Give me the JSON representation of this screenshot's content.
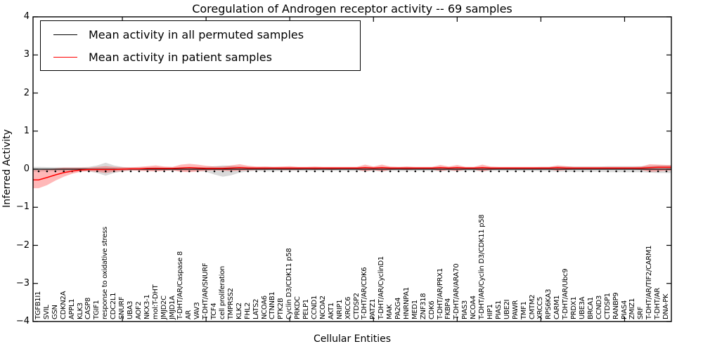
{
  "figure": {
    "title": "Coregulation of Androgen receptor activity -- 69 samples",
    "xlabel": "Cellular Entities",
    "ylabel": "Inferred Activity"
  },
  "legend": {
    "entries": [
      {
        "label": "Mean activity in all permuted samples",
        "color": "#000000"
      },
      {
        "label": "Mean activity in patient samples",
        "color": "#ff0000"
      }
    ]
  },
  "chart_data": {
    "type": "line",
    "title": "Coregulation of Androgen receptor activity -- 69 samples",
    "xlabel": "Cellular Entities",
    "ylabel": "Inferred Activity",
    "ylim": [
      -4,
      4
    ],
    "yticks": [
      4,
      3,
      2,
      1,
      0,
      -1,
      -2,
      -3,
      -4
    ],
    "ytick_labels": [
      "4",
      "3",
      "2",
      "1",
      "0",
      "−1",
      "−2",
      "−3",
      "−4"
    ],
    "grid": false,
    "legend_position": "upper left",
    "categories": [
      "TGFB1I1",
      "SVIL",
      "GSN",
      "CDKN2A",
      "APPL1",
      "KLK3",
      "CASP8",
      "TGIF1",
      "response to oxidative stress",
      "CDC2L1",
      "SNURF",
      "UBA3",
      "AOF2",
      "NKX3-1",
      "mol:T-DHT",
      "JMJD2C",
      "JMJD1A",
      "T-DHT/AR/Caspase 8",
      "AR",
      "VAV3",
      "T-DHT/AR/SNURF",
      "TCF4",
      "cell proliferation",
      "TMPRSS2",
      "KLK2",
      "FHL2",
      "LATS2",
      "NCOA6",
      "CTNNB1",
      "PTK2B",
      "Cyclin D3/CDK11 p58",
      "PRKDC",
      "PELP1",
      "CCND1",
      "NCOA2",
      "AKT1",
      "NRIP1",
      "XRCC6",
      "CTDSP2",
      "T-DHT/AR/CDK6",
      "PATZ1",
      "T-DHT/AR/CyclinD1",
      "MAK",
      "PA2G4",
      "HNRNPA1",
      "MED1",
      "ZNF318",
      "CDK6",
      "T-DHT/AR/PRX1",
      "FKBP4",
      "T-DHT/AR/ARA70",
      "PIAS3",
      "NCOA4",
      "T-DHT/AR/Cyclin D3/CDK11 p58",
      "HIP1",
      "PIAS1",
      "UBE2I",
      "PAWR",
      "TMF1",
      "CMTM2",
      "XRCC5",
      "RPS6KA3",
      "CARM1",
      "T-DHT/AR/Ubc9",
      "PRDX1",
      "UBE3A",
      "BRCA1",
      "CCND3",
      "CTDSP1",
      "RANBP9",
      "PIAS4",
      "ZMIZ1",
      "SRF",
      "T-DHT/AR/TIF2/CARM1",
      "T-DHT/AR",
      "DNA-PK"
    ],
    "series": [
      {
        "name": "Mean activity in all permuted samples",
        "color": "#000000",
        "style": "solid line at constant value with dot markers per entity",
        "constant_value": 0.0,
        "marker_offset": -0.055
      },
      {
        "name": "Mean activity in patient samples",
        "color": "#ff0000",
        "values": [
          -0.28,
          -0.22,
          -0.15,
          -0.09,
          -0.05,
          -0.02,
          -0.01,
          -0.01,
          -0.01,
          -0.01,
          0.0,
          0.01,
          0.01,
          0.02,
          0.02,
          0.02,
          0.02,
          0.03,
          0.04,
          0.03,
          0.02,
          0.02,
          0.02,
          0.03,
          0.04,
          0.03,
          0.03,
          0.03,
          0.03,
          0.03,
          0.03,
          0.03,
          0.03,
          0.03,
          0.03,
          0.03,
          0.03,
          0.03,
          0.03,
          0.04,
          0.03,
          0.04,
          0.03,
          0.03,
          0.03,
          0.03,
          0.03,
          0.03,
          0.04,
          0.03,
          0.04,
          0.03,
          0.03,
          0.04,
          0.03,
          0.03,
          0.03,
          0.03,
          0.03,
          0.03,
          0.03,
          0.03,
          0.04,
          0.03,
          0.03,
          0.03,
          0.03,
          0.03,
          0.03,
          0.03,
          0.03,
          0.03,
          0.03,
          0.04,
          0.05,
          0.05
        ]
      }
    ],
    "bands": [
      {
        "name": "permuted samples spread",
        "color": "rgba(130,130,130,0.30)",
        "upper": [
          0.06,
          0.055,
          0.05,
          0.05,
          0.05,
          0.05,
          0.06,
          0.1,
          0.17,
          0.1,
          0.06,
          0.045,
          0.045,
          0.045,
          0.05,
          0.045,
          0.045,
          0.05,
          0.055,
          0.05,
          0.06,
          0.08,
          0.1,
          0.09,
          0.07,
          0.06,
          0.05,
          0.06,
          0.06,
          0.05,
          0.05,
          0.05,
          0.05,
          0.05,
          0.05,
          0.05,
          0.05,
          0.05,
          0.05,
          0.06,
          0.05,
          0.06,
          0.05,
          0.05,
          0.06,
          0.05,
          0.05,
          0.05,
          0.06,
          0.05,
          0.06,
          0.05,
          0.05,
          0.06,
          0.05,
          0.05,
          0.05,
          0.05,
          0.05,
          0.05,
          0.06,
          0.06,
          0.07,
          0.07,
          0.07,
          0.07,
          0.07,
          0.07,
          0.08,
          0.08,
          0.08,
          0.08,
          0.08,
          0.09,
          0.1,
          0.1
        ],
        "lower": [
          -0.06,
          -0.055,
          -0.05,
          -0.05,
          -0.05,
          -0.05,
          -0.06,
          -0.1,
          -0.17,
          -0.1,
          -0.06,
          -0.045,
          -0.045,
          -0.045,
          -0.05,
          -0.045,
          -0.045,
          -0.05,
          -0.055,
          -0.05,
          -0.07,
          -0.14,
          -0.2,
          -0.16,
          -0.09,
          -0.06,
          -0.05,
          -0.06,
          -0.06,
          -0.05,
          -0.05,
          -0.05,
          -0.05,
          -0.05,
          -0.05,
          -0.05,
          -0.05,
          -0.05,
          -0.05,
          -0.06,
          -0.05,
          -0.06,
          -0.05,
          -0.05,
          -0.06,
          -0.05,
          -0.05,
          -0.05,
          -0.06,
          -0.05,
          -0.06,
          -0.05,
          -0.05,
          -0.06,
          -0.05,
          -0.05,
          -0.05,
          -0.05,
          -0.05,
          -0.05,
          -0.06,
          -0.06,
          -0.07,
          -0.07,
          -0.07,
          -0.07,
          -0.07,
          -0.07,
          -0.08,
          -0.08,
          -0.08,
          -0.08,
          -0.08,
          -0.09,
          -0.1,
          -0.1
        ]
      },
      {
        "name": "patient samples spread",
        "color": "rgba(255,0,0,0.28)",
        "upper": [
          -0.02,
          0.0,
          0.02,
          0.04,
          0.04,
          0.04,
          0.04,
          0.06,
          0.08,
          0.06,
          0.05,
          0.05,
          0.06,
          0.08,
          0.1,
          0.07,
          0.06,
          0.12,
          0.14,
          0.12,
          0.09,
          0.07,
          0.07,
          0.1,
          0.13,
          0.09,
          0.07,
          0.07,
          0.06,
          0.07,
          0.08,
          0.06,
          0.06,
          0.07,
          0.06,
          0.06,
          0.06,
          0.06,
          0.06,
          0.12,
          0.07,
          0.12,
          0.07,
          0.06,
          0.07,
          0.06,
          0.06,
          0.06,
          0.11,
          0.07,
          0.11,
          0.06,
          0.06,
          0.12,
          0.07,
          0.06,
          0.06,
          0.06,
          0.06,
          0.06,
          0.06,
          0.06,
          0.1,
          0.08,
          0.06,
          0.06,
          0.06,
          0.06,
          0.06,
          0.06,
          0.06,
          0.06,
          0.07,
          0.13,
          0.12,
          0.11
        ],
        "lower": [
          -0.5,
          -0.42,
          -0.3,
          -0.2,
          -0.12,
          -0.07,
          -0.05,
          -0.07,
          -0.1,
          -0.07,
          -0.05,
          -0.03,
          -0.04,
          -0.05,
          -0.06,
          -0.04,
          -0.03,
          -0.07,
          -0.08,
          -0.06,
          -0.04,
          -0.03,
          -0.04,
          -0.05,
          -0.04,
          -0.03,
          -0.02,
          -0.02,
          -0.01,
          -0.02,
          -0.02,
          -0.02,
          -0.01,
          -0.02,
          -0.01,
          -0.02,
          -0.01,
          -0.01,
          -0.01,
          -0.06,
          -0.02,
          -0.06,
          -0.02,
          -0.01,
          -0.02,
          -0.01,
          -0.01,
          -0.01,
          -0.05,
          -0.02,
          -0.05,
          -0.01,
          -0.01,
          -0.06,
          -0.02,
          -0.01,
          -0.01,
          -0.01,
          -0.01,
          -0.01,
          -0.01,
          -0.01,
          -0.04,
          -0.02,
          -0.01,
          -0.01,
          -0.01,
          -0.01,
          -0.01,
          -0.01,
          -0.01,
          -0.01,
          -0.02,
          -0.07,
          -0.06,
          -0.04
        ]
      }
    ]
  }
}
